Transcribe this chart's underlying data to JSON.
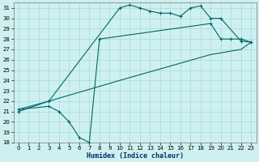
{
  "xlabel": "Humidex (Indice chaleur)",
  "background_color": "#cff0f0",
  "grid_color": "#aadddd",
  "line_color": "#006666",
  "ylim": [
    18,
    31.5
  ],
  "xlim": [
    -0.5,
    23.5
  ],
  "yticks": [
    18,
    19,
    20,
    21,
    22,
    23,
    24,
    25,
    26,
    27,
    28,
    29,
    30,
    31
  ],
  "xticks": [
    0,
    1,
    2,
    3,
    4,
    5,
    6,
    7,
    8,
    9,
    10,
    11,
    12,
    13,
    14,
    15,
    16,
    17,
    18,
    19,
    20,
    21,
    22,
    23
  ],
  "line1_x": [
    0,
    3,
    10,
    11,
    12,
    13,
    14,
    15,
    16,
    17,
    18,
    19,
    20,
    22,
    23
  ],
  "line1_y": [
    21,
    22,
    31,
    31.3,
    31,
    30.7,
    30.5,
    30.5,
    30.2,
    31,
    31.2,
    30,
    30,
    27.8,
    27.7
  ],
  "line2_x": [
    0,
    3,
    4,
    5,
    6,
    7,
    8,
    19,
    20,
    21,
    22,
    23
  ],
  "line2_y": [
    21.2,
    21.5,
    21,
    20,
    18.5,
    18,
    28,
    29.5,
    28,
    28,
    28,
    27.7
  ],
  "line3_x": [
    0,
    3,
    10,
    19,
    22,
    23
  ],
  "line3_y": [
    21.2,
    22,
    24,
    26.5,
    27,
    27.7
  ]
}
